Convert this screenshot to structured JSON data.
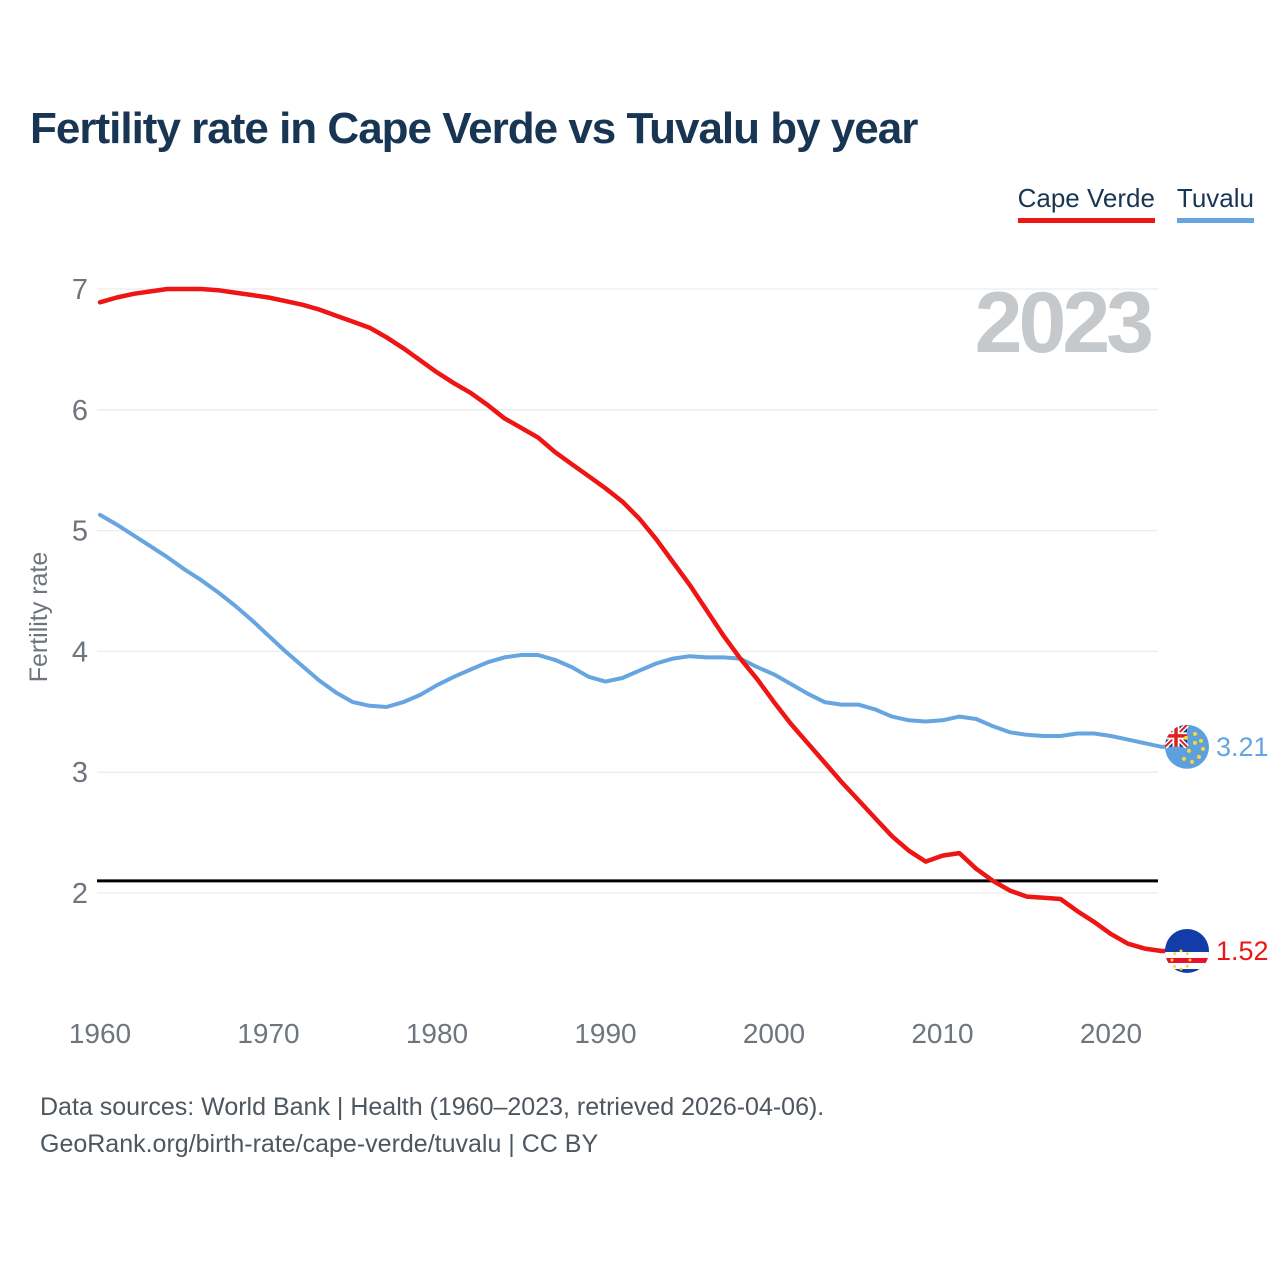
{
  "header": {
    "title": "Fertility rate in Cape Verde vs Tuvalu by year"
  },
  "legend": [
    {
      "label": "Cape Verde",
      "color": "#ee1515"
    },
    {
      "label": "Tuvalu",
      "color": "#66a5e0"
    }
  ],
  "watermark": "2023",
  "footer": {
    "line1": "Data sources: World Bank | Health (1960–2023, retrieved 2026-04-06).",
    "line2": "GeoRank.org/birth-rate/cape-verde/tuvalu | CC BY"
  },
  "colors": {
    "title": "#183654",
    "cape_verde_red": "#ee1515",
    "tuvalu_blue": "#66a5e0",
    "axis_text": "#6e757c",
    "gridline": "#ececec",
    "watermark": "#c6c9cc",
    "footer_text": "#4e575f",
    "reference_line": "#000000"
  },
  "chart_data": {
    "type": "line",
    "title": "Fertility rate in Cape Verde vs Tuvalu by year",
    "xlabel": "",
    "ylabel": "Fertility rate",
    "x_start_year": 1960,
    "x_end_year": 2023,
    "x_ticks": [
      1960,
      1970,
      1980,
      1990,
      2000,
      2010,
      2020
    ],
    "y_ticks": [
      7,
      6,
      5,
      4,
      3,
      2
    ],
    "ylim": [
      1.45,
      7.05
    ],
    "grid": true,
    "legend_position": "top-right",
    "reference_line": 2.1,
    "current_year_label": "2023",
    "series": [
      {
        "name": "Cape Verde",
        "color": "#ee1515",
        "end_label": "1.52",
        "end_value": 1.52,
        "flag": "cape-verde",
        "values": [
          6.89,
          6.93,
          6.96,
          6.98,
          7.0,
          7.0,
          7.0,
          6.99,
          6.97,
          6.95,
          6.93,
          6.9,
          6.87,
          6.83,
          6.78,
          6.73,
          6.68,
          6.6,
          6.51,
          6.41,
          6.31,
          6.22,
          6.14,
          6.04,
          5.93,
          5.85,
          5.77,
          5.65,
          5.55,
          5.45,
          5.35,
          5.24,
          5.1,
          4.93,
          4.74,
          4.55,
          4.34,
          4.13,
          3.94,
          3.77,
          3.58,
          3.4,
          3.24,
          3.08,
          2.92,
          2.77,
          2.62,
          2.47,
          2.35,
          2.26,
          2.31,
          2.33,
          2.2,
          2.1,
          2.02,
          1.97,
          1.96,
          1.95,
          1.85,
          1.76,
          1.66,
          1.58,
          1.54,
          1.52
        ]
      },
      {
        "name": "Tuvalu",
        "color": "#66a5e0",
        "end_label": "3.21",
        "end_value": 3.21,
        "flag": "tuvalu",
        "values": [
          5.13,
          5.05,
          4.96,
          4.87,
          4.78,
          4.68,
          4.59,
          4.49,
          4.38,
          4.26,
          4.13,
          4.0,
          3.88,
          3.76,
          3.66,
          3.58,
          3.55,
          3.54,
          3.58,
          3.64,
          3.72,
          3.79,
          3.85,
          3.91,
          3.95,
          3.97,
          3.97,
          3.93,
          3.87,
          3.79,
          3.75,
          3.78,
          3.84,
          3.9,
          3.94,
          3.96,
          3.95,
          3.95,
          3.94,
          3.87,
          3.81,
          3.73,
          3.65,
          3.58,
          3.56,
          3.56,
          3.52,
          3.46,
          3.43,
          3.42,
          3.43,
          3.46,
          3.44,
          3.38,
          3.33,
          3.31,
          3.3,
          3.3,
          3.32,
          3.32,
          3.3,
          3.27,
          3.24,
          3.21
        ]
      }
    ]
  }
}
